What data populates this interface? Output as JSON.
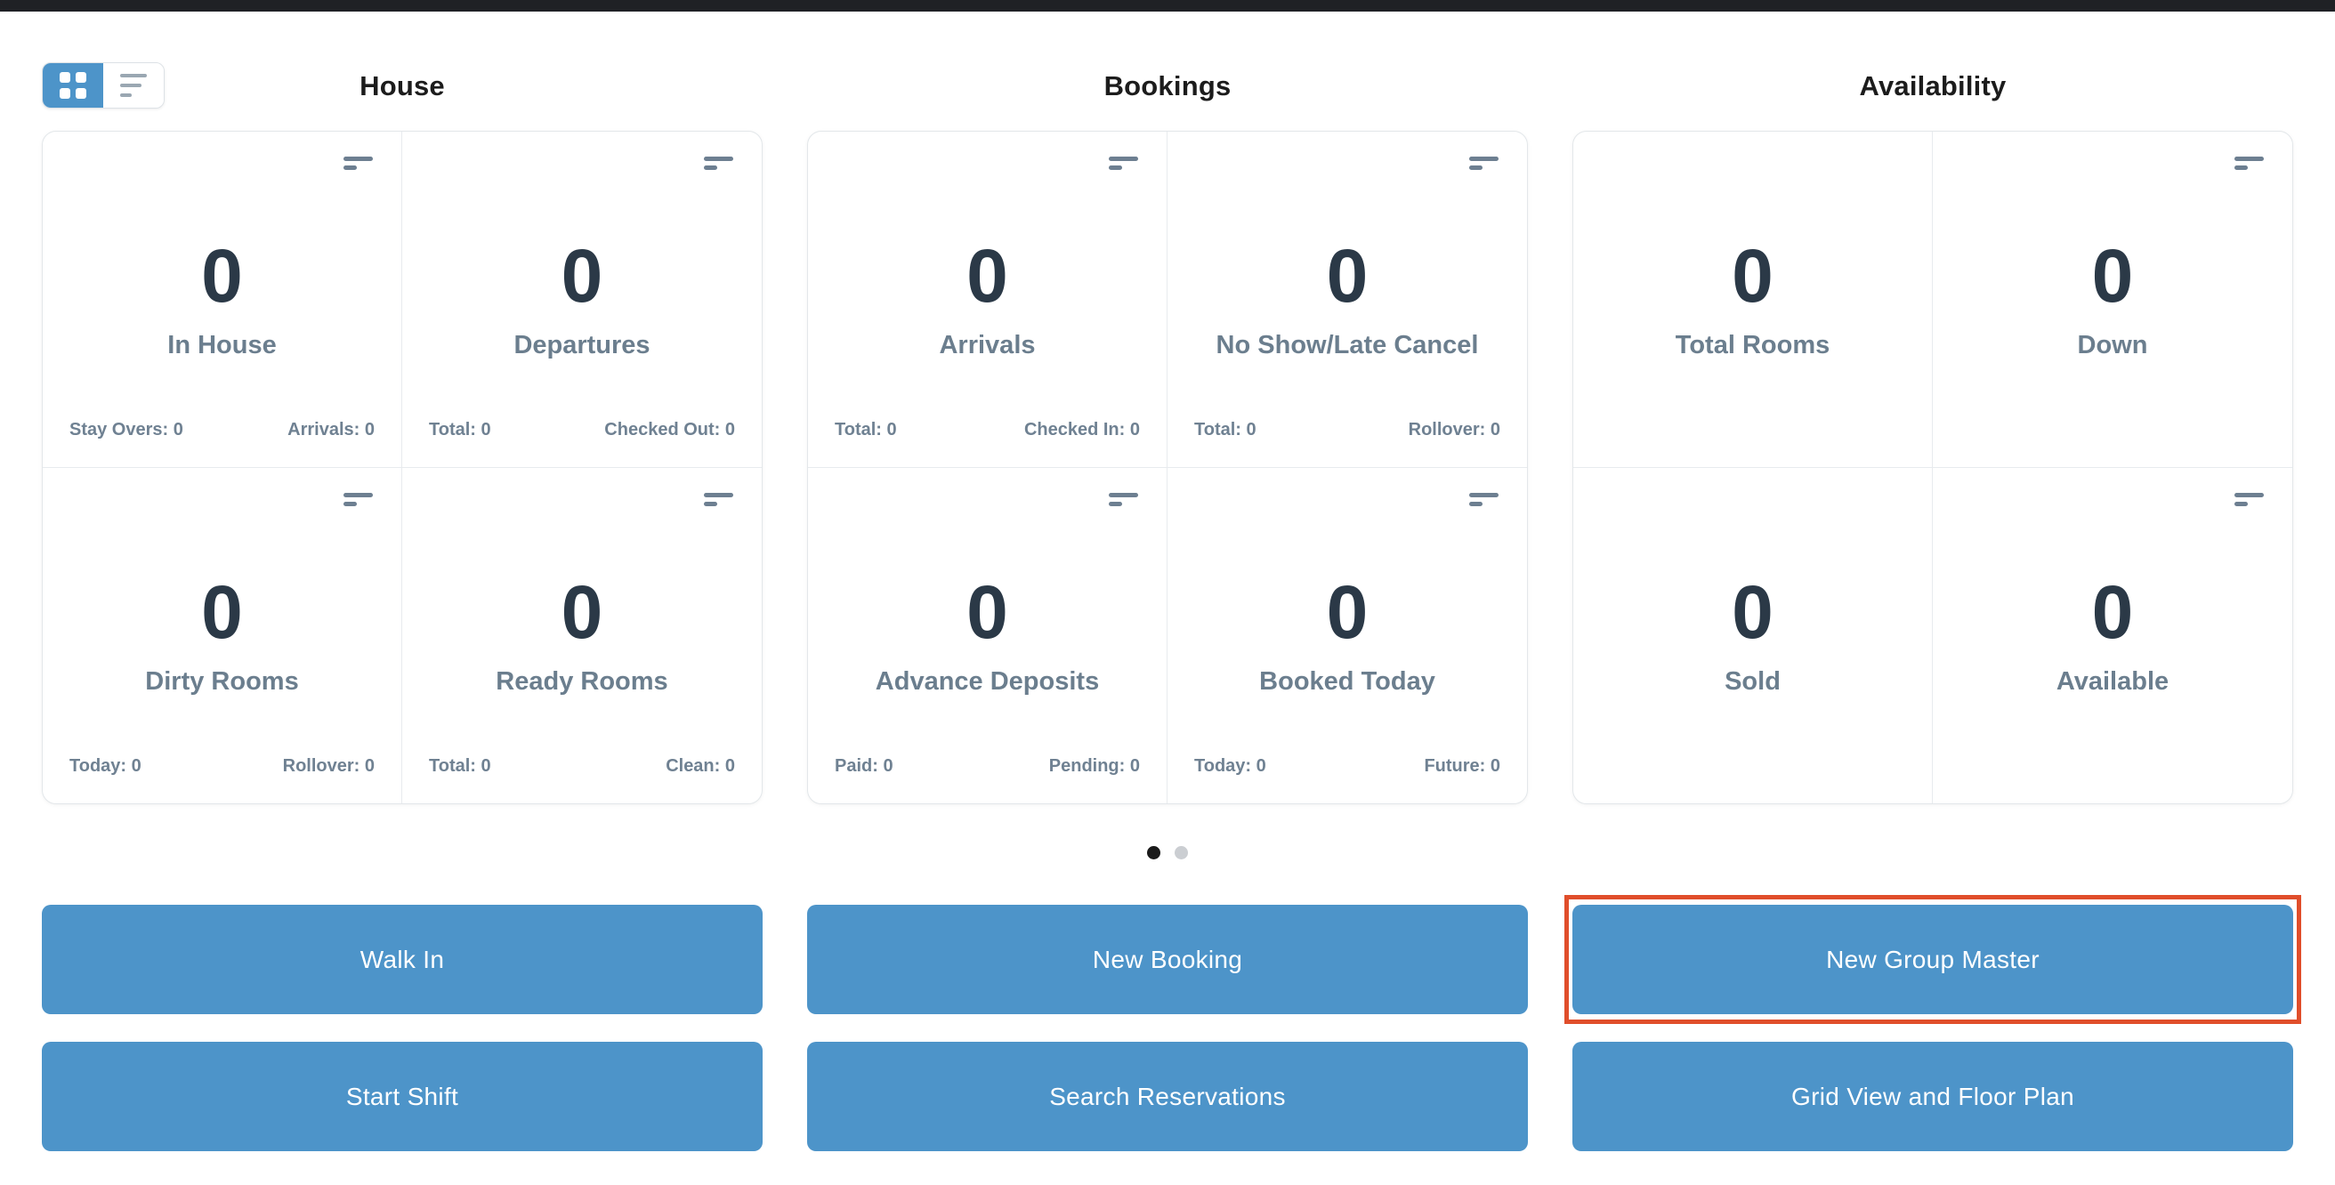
{
  "view_toggle": {
    "selected": "grid",
    "options": [
      "grid",
      "list"
    ]
  },
  "sections": [
    {
      "title": "House",
      "cards": [
        {
          "value": "0",
          "label": "In House",
          "footer_left": "Stay Overs: 0",
          "footer_right": "Arrivals: 0",
          "has_icon": true
        },
        {
          "value": "0",
          "label": "Departures",
          "footer_left": "Total: 0",
          "footer_right": "Checked Out: 0",
          "has_icon": true
        },
        {
          "value": "0",
          "label": "Dirty Rooms",
          "footer_left": "Today: 0",
          "footer_right": "Rollover: 0",
          "has_icon": true
        },
        {
          "value": "0",
          "label": "Ready Rooms",
          "footer_left": "Total: 0",
          "footer_right": "Clean: 0",
          "has_icon": true
        }
      ]
    },
    {
      "title": "Bookings",
      "cards": [
        {
          "value": "0",
          "label": "Arrivals",
          "footer_left": "Total: 0",
          "footer_right": "Checked In: 0",
          "has_icon": true
        },
        {
          "value": "0",
          "label": "No Show/Late Cancel",
          "footer_left": "Total: 0",
          "footer_right": "Rollover: 0",
          "has_icon": true
        },
        {
          "value": "0",
          "label": "Advance Deposits",
          "footer_left": "Paid: 0",
          "footer_right": "Pending: 0",
          "has_icon": true
        },
        {
          "value": "0",
          "label": "Booked Today",
          "footer_left": "Today: 0",
          "footer_right": "Future: 0",
          "has_icon": true
        }
      ]
    },
    {
      "title": "Availability",
      "cards": [
        {
          "value": "0",
          "label": "Total Rooms",
          "has_icon": false
        },
        {
          "value": "0",
          "label": "Down",
          "has_icon": true
        },
        {
          "value": "0",
          "label": "Sold",
          "has_icon": false
        },
        {
          "value": "0",
          "label": "Available",
          "has_icon": true
        }
      ]
    }
  ],
  "pagination": {
    "total_pages": 2,
    "active_page": 1
  },
  "actions": {
    "rows": [
      [
        "Walk In",
        "New Booking",
        "New Group Master"
      ],
      [
        "Start Shift",
        "Search Reservations",
        "Grid View and Floor Plan"
      ]
    ],
    "highlighted": "New Group Master"
  },
  "colors": {
    "accent_blue": "#4d94c9",
    "highlight_red": "#e04e2b",
    "dot_active": "#1a1a1a",
    "dot_inactive": "#cbced2",
    "topbar": "#1f2125"
  }
}
